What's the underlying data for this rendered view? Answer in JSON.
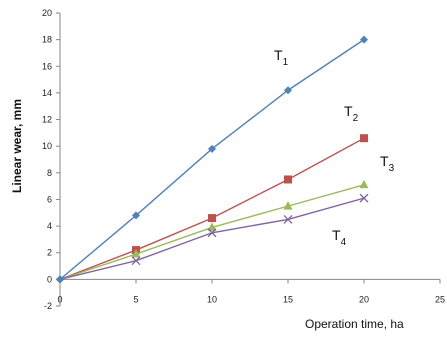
{
  "chart_data": {
    "type": "line",
    "xlabel": "Operation time, ha",
    "ylabel": "Linear wear, mm",
    "xlim": [
      0,
      25
    ],
    "ylim": [
      -2,
      20
    ],
    "x_ticks": [
      "0",
      "5",
      "10",
      "15",
      "20",
      "25"
    ],
    "y_ticks": [
      "-2",
      "0",
      "2",
      "4",
      "6",
      "8",
      "10",
      "12",
      "14",
      "16",
      "18",
      "20"
    ],
    "grid": false,
    "legend": "none",
    "series": [
      {
        "name": "T",
        "subscript": "1",
        "color": "#4f81bd",
        "marker": "diamond",
        "x": [
          0,
          5,
          10,
          15,
          20
        ],
        "y": [
          0,
          4.8,
          9.8,
          14.2,
          18.0
        ]
      },
      {
        "name": "T",
        "subscript": "2",
        "color": "#c0504d",
        "marker": "square",
        "x": [
          0,
          5,
          10,
          15,
          20
        ],
        "y": [
          0,
          2.2,
          4.6,
          7.5,
          10.6
        ]
      },
      {
        "name": "T",
        "subscript": "3",
        "color": "#9bbb59",
        "marker": "triangle",
        "x": [
          0,
          5,
          10,
          15,
          20
        ],
        "y": [
          0,
          1.9,
          3.9,
          5.5,
          7.1
        ]
      },
      {
        "name": "T",
        "subscript": "4",
        "color": "#8064a2",
        "marker": "x",
        "x": [
          0,
          5,
          10,
          15,
          20
        ],
        "y": [
          0,
          1.4,
          3.5,
          4.5,
          6.1
        ]
      }
    ]
  }
}
